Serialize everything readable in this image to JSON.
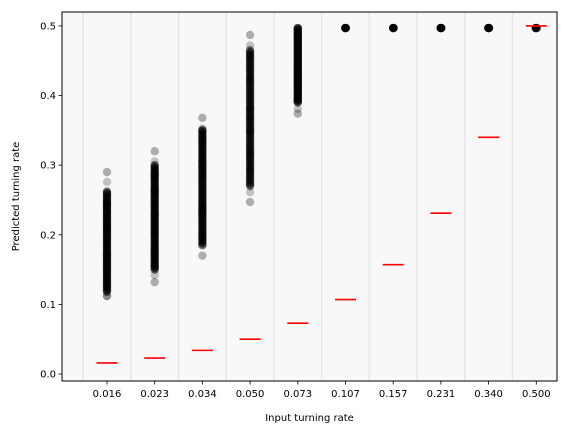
{
  "chart_data": {
    "type": "scatter",
    "title": "",
    "xlabel": "Input turning rate",
    "ylabel": "Predicted turning rate",
    "categories": [
      "0.016",
      "0.023",
      "0.034",
      "0.050",
      "0.073",
      "0.107",
      "0.157",
      "0.231",
      "0.340",
      "0.500"
    ],
    "ylim": [
      -0.01,
      0.52
    ],
    "yticks": [
      "0.0",
      "0.1",
      "0.2",
      "0.3",
      "0.4",
      "0.5"
    ],
    "grid": "vertical separators between categories",
    "series": [
      {
        "kind": "scatter",
        "color": "#000000",
        "ranges": [
          {
            "category": "0.016",
            "min": 0.112,
            "max": 0.29,
            "dense_min": 0.118,
            "dense_max": 0.262
          },
          {
            "category": "0.023",
            "min": 0.132,
            "max": 0.32,
            "dense_min": 0.15,
            "dense_max": 0.3
          },
          {
            "category": "0.034",
            "min": 0.17,
            "max": 0.368,
            "dense_min": 0.185,
            "dense_max": 0.35
          },
          {
            "category": "0.050",
            "min": 0.247,
            "max": 0.487,
            "dense_min": 0.27,
            "dense_max": 0.465
          },
          {
            "category": "0.073",
            "min": 0.374,
            "max": 0.497,
            "dense_min": 0.39,
            "dense_max": 0.497
          },
          {
            "category": "0.107",
            "min": 0.497,
            "max": 0.497,
            "dense_min": 0.497,
            "dense_max": 0.497
          },
          {
            "category": "0.157",
            "min": 0.497,
            "max": 0.497,
            "dense_min": 0.497,
            "dense_max": 0.497
          },
          {
            "category": "0.231",
            "min": 0.497,
            "max": 0.497,
            "dense_min": 0.497,
            "dense_max": 0.497
          },
          {
            "category": "0.340",
            "min": 0.497,
            "max": 0.497,
            "dense_min": 0.497,
            "dense_max": 0.497
          },
          {
            "category": "0.500",
            "min": 0.497,
            "max": 0.497,
            "dense_min": 0.497,
            "dense_max": 0.497
          }
        ]
      },
      {
        "kind": "reference",
        "color": "#ff0000",
        "values": [
          0.016,
          0.023,
          0.034,
          0.05,
          0.073,
          0.107,
          0.157,
          0.231,
          0.34,
          0.5
        ]
      }
    ]
  }
}
